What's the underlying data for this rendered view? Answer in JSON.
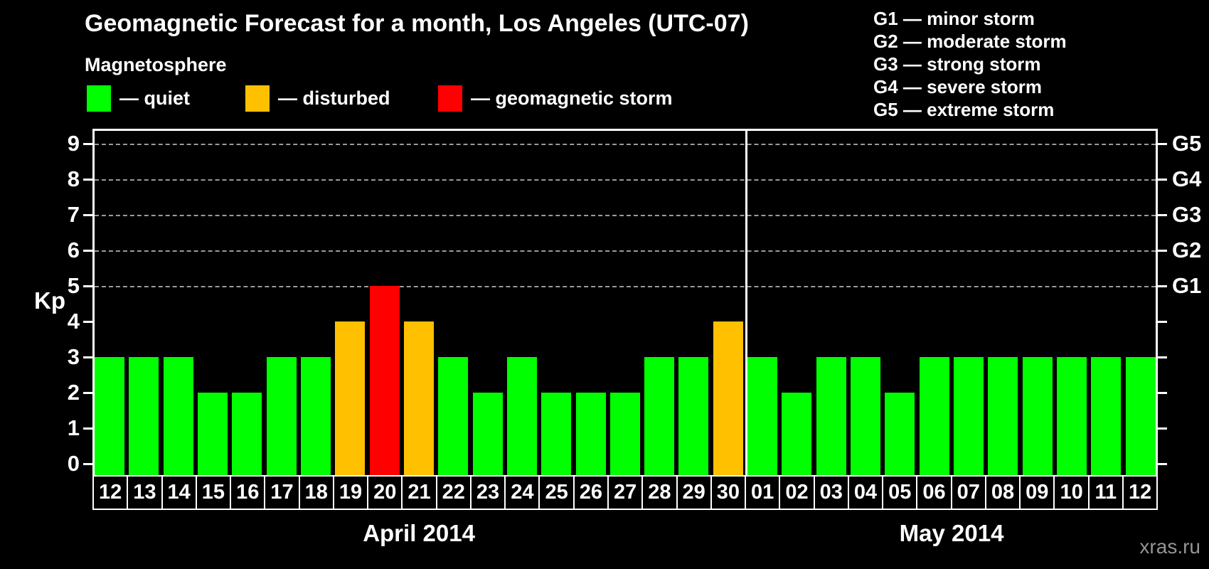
{
  "title": "Geomagnetic Forecast for a month, Los Angeles (UTC-07)",
  "subtitle": "Magnetosphere",
  "legend": {
    "items": [
      {
        "label": "— quiet",
        "status": "quiet"
      },
      {
        "label": "— disturbed",
        "status": "disturbed"
      },
      {
        "label": "— geomagnetic storm",
        "status": "storm"
      }
    ]
  },
  "g_scale_legend": [
    "G1 — minor storm",
    "G2 — moderate storm",
    "G3 — strong storm",
    "G4 — severe storm",
    "G5 — extreme storm"
  ],
  "watermark": "xras.ru",
  "colors": {
    "quiet": "#00ff00",
    "disturbed": "#ffc000",
    "storm": "#ff0000",
    "background": "#000000",
    "axis": "#ffffff",
    "grid": "#9a9a9a",
    "text": "#ffffff",
    "watermark": "#959595"
  },
  "chart_data": {
    "type": "bar",
    "title": "Geomagnetic Forecast for a month, Los Angeles (UTC-07)",
    "ylabel": "Kp",
    "ylim": [
      0,
      9
    ],
    "y_ticks": [
      0,
      1,
      2,
      3,
      4,
      5,
      6,
      7,
      8,
      9
    ],
    "grid_levels": [
      5,
      6,
      7,
      8,
      9
    ],
    "right_axis_labels": {
      "5": "G1",
      "6": "G2",
      "7": "G3",
      "8": "G4",
      "9": "G5"
    },
    "grid": "dashed horizontal at Kp 5-9",
    "legend_position": "top-left",
    "months": [
      {
        "label": "April 2014",
        "days": 19
      },
      {
        "label": "May 2014",
        "days": 12
      }
    ],
    "points": [
      {
        "day": "12",
        "kp": 3,
        "status": "quiet"
      },
      {
        "day": "13",
        "kp": 3,
        "status": "quiet"
      },
      {
        "day": "14",
        "kp": 3,
        "status": "quiet"
      },
      {
        "day": "15",
        "kp": 2,
        "status": "quiet"
      },
      {
        "day": "16",
        "kp": 2,
        "status": "quiet"
      },
      {
        "day": "17",
        "kp": 3,
        "status": "quiet"
      },
      {
        "day": "18",
        "kp": 3,
        "status": "quiet"
      },
      {
        "day": "19",
        "kp": 4,
        "status": "disturbed"
      },
      {
        "day": "20",
        "kp": 5,
        "status": "storm"
      },
      {
        "day": "21",
        "kp": 4,
        "status": "disturbed"
      },
      {
        "day": "22",
        "kp": 3,
        "status": "quiet"
      },
      {
        "day": "23",
        "kp": 2,
        "status": "quiet"
      },
      {
        "day": "24",
        "kp": 3,
        "status": "quiet"
      },
      {
        "day": "25",
        "kp": 2,
        "status": "quiet"
      },
      {
        "day": "26",
        "kp": 2,
        "status": "quiet"
      },
      {
        "day": "27",
        "kp": 2,
        "status": "quiet"
      },
      {
        "day": "28",
        "kp": 3,
        "status": "quiet"
      },
      {
        "day": "29",
        "kp": 3,
        "status": "quiet"
      },
      {
        "day": "30",
        "kp": 4,
        "status": "disturbed"
      },
      {
        "day": "01",
        "kp": 3,
        "status": "quiet"
      },
      {
        "day": "02",
        "kp": 2,
        "status": "quiet"
      },
      {
        "day": "03",
        "kp": 3,
        "status": "quiet"
      },
      {
        "day": "04",
        "kp": 3,
        "status": "quiet"
      },
      {
        "day": "05",
        "kp": 2,
        "status": "quiet"
      },
      {
        "day": "06",
        "kp": 3,
        "status": "quiet"
      },
      {
        "day": "07",
        "kp": 3,
        "status": "quiet"
      },
      {
        "day": "08",
        "kp": 3,
        "status": "quiet"
      },
      {
        "day": "09",
        "kp": 3,
        "status": "quiet"
      },
      {
        "day": "10",
        "kp": 3,
        "status": "quiet"
      },
      {
        "day": "11",
        "kp": 3,
        "status": "quiet"
      },
      {
        "day": "12",
        "kp": 3,
        "status": "quiet"
      }
    ]
  }
}
